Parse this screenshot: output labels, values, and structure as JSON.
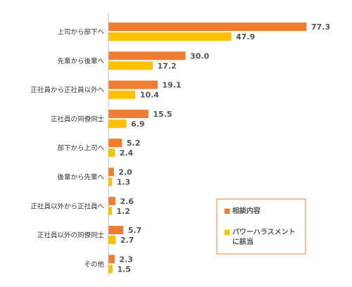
{
  "chart_data": {
    "type": "bar",
    "orientation": "horizontal",
    "categories": [
      "上司から部下へ",
      "先輩から後輩へ",
      "正社員から正社員以外へ",
      "正社員の同僚同士",
      "部下から上司へ",
      "後輩から先輩へ",
      "正社員以外から正社員へ",
      "正社員以外の同僚同士",
      "その他"
    ],
    "series": [
      {
        "name": "相談内容",
        "color": "#ED7D31",
        "values": [
          77.3,
          30.0,
          19.1,
          15.5,
          5.2,
          2.0,
          2.6,
          5.7,
          2.3
        ],
        "labels": [
          "77.3",
          "30.0",
          "19.1",
          "15.5",
          "5.2",
          "2.0",
          "2.6",
          "5.7",
          "2.3"
        ]
      },
      {
        "name": "パワーハラスメントに該当",
        "color": "#FFC000",
        "values": [
          47.9,
          17.2,
          10.4,
          6.9,
          2.4,
          1.3,
          1.2,
          2.7,
          1.5
        ],
        "labels": [
          "47.9",
          "17.2",
          "10.4",
          "6.9",
          "2.4",
          "1.3",
          "1.2",
          "2.7",
          "1.5"
        ]
      }
    ],
    "legend": {
      "position": "bottom-right",
      "border_color": "#ED7D31",
      "entries": [
        {
          "marker": "■",
          "lines": [
            "相談内容"
          ],
          "color": "#ED7D31"
        },
        {
          "marker": "■",
          "lines": [
            "パワーハラスメント",
            "に該当"
          ],
          "color": "#FFC000"
        }
      ]
    },
    "grid": false,
    "axis_color": "#BFBFBF",
    "xlim": [
      0,
      77.3
    ]
  }
}
